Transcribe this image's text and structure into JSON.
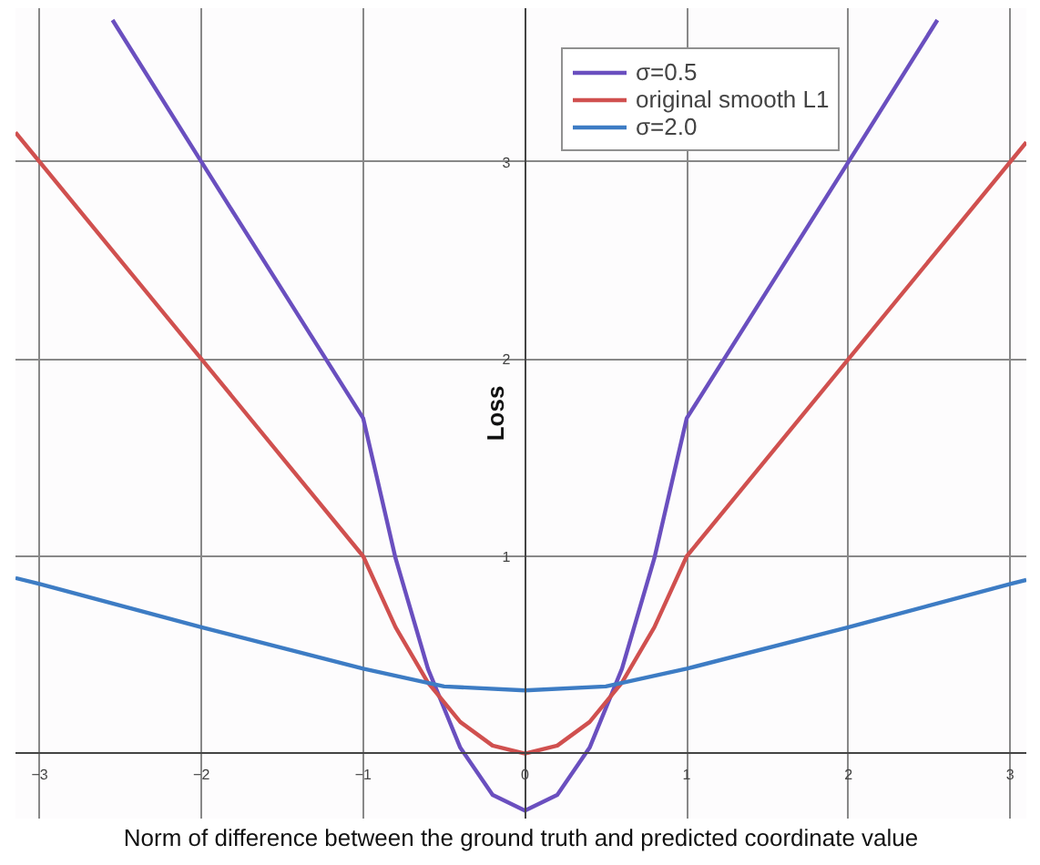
{
  "chart_data": {
    "type": "line",
    "xlabel": "Norm of difference between the ground truth and predicted coordinate value",
    "ylabel": "Loss",
    "xlim": [
      -3.15,
      3.1
    ],
    "ylim": [
      -0.33,
      3.78
    ],
    "xticks": [
      -3,
      -2,
      -1,
      0,
      1,
      2,
      3
    ],
    "yticks": [
      1,
      2,
      3
    ],
    "grid": true,
    "legend": "top right",
    "line_style": "solid",
    "marker": "none",
    "series": [
      {
        "name": "σ=0.5",
        "color": "#6a4fbf",
        "x": [
          -2.55,
          -2,
          -1.5,
          -1,
          -0.8,
          -0.6,
          -0.4,
          -0.2,
          0,
          0.2,
          0.4,
          0.6,
          0.8,
          1,
          1.5,
          2,
          2.55
        ],
        "values": [
          3.72,
          3.0,
          2.35,
          1.7,
          0.99,
          0.43,
          0.03,
          -0.21,
          -0.29,
          -0.21,
          0.03,
          0.43,
          0.99,
          1.7,
          2.35,
          3.0,
          3.72
        ]
      },
      {
        "name": "original smooth L1",
        "color": "#d0504f",
        "x": [
          -3.15,
          -2,
          -1,
          -0.8,
          -0.6,
          -0.4,
          -0.2,
          0,
          0.2,
          0.4,
          0.6,
          0.8,
          1,
          2,
          3.1
        ],
        "values": [
          3.15,
          2,
          1,
          0.64,
          0.36,
          0.16,
          0.04,
          0,
          0.04,
          0.16,
          0.36,
          0.64,
          1,
          2,
          3.1
        ]
      },
      {
        "name": "σ=2.0",
        "color": "#3d7cc4",
        "x": [
          -3.15,
          -3,
          -2,
          -1,
          -0.5,
          0,
          0.5,
          1,
          2,
          3,
          3.1
        ],
        "values": [
          0.89,
          0.86,
          0.64,
          0.43,
          0.34,
          0.32,
          0.34,
          0.43,
          0.64,
          0.86,
          0.88
        ]
      }
    ]
  }
}
